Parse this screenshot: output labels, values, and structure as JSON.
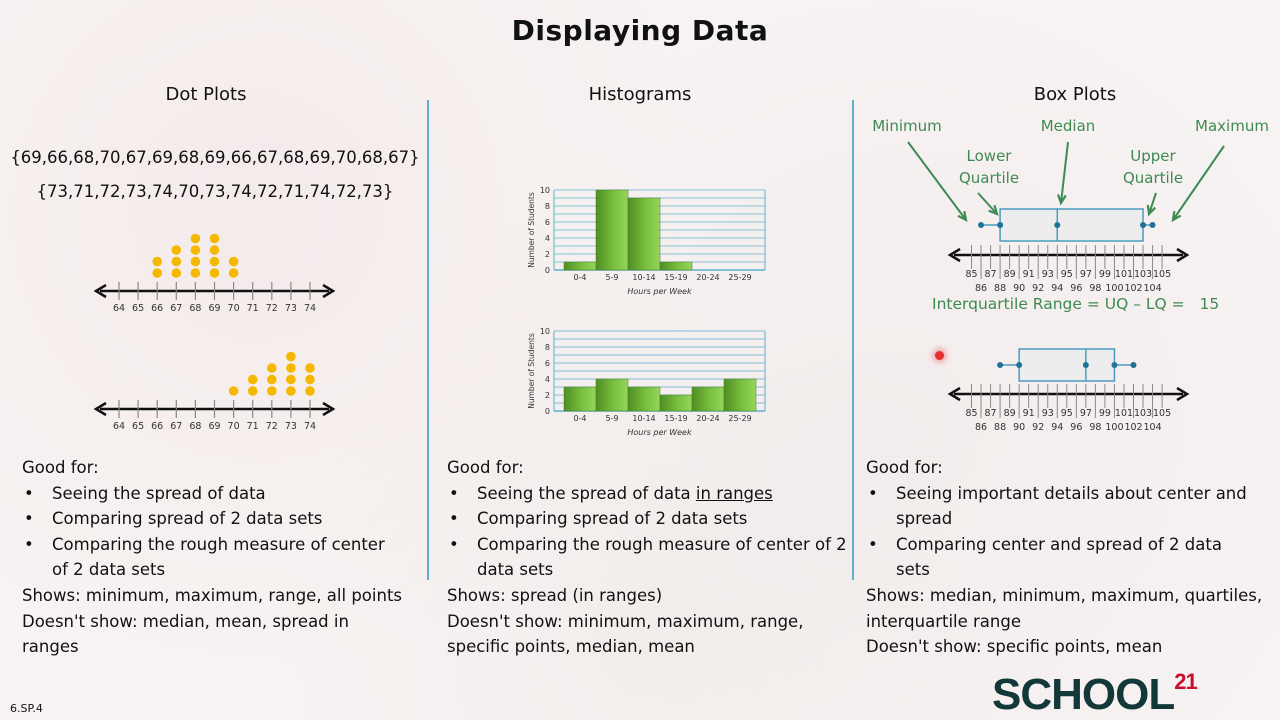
{
  "title": "Displaying Data",
  "columns": {
    "dot_plots": {
      "heading": "Dot Plots",
      "dataset1": "{69,66,68,70,67,69,68,69,66,67,68,69,70,68,67}",
      "dataset2": "{73,71,72,73,74,70,73,74,72,71,74,72,73}",
      "good_for_label": "Good for:",
      "good_for": [
        "Seeing the spread of data",
        "Comparing spread of 2 data sets",
        "Comparing the rough measure of center of 2 data sets"
      ],
      "shows": "Shows:  minimum, maximum, range, all points",
      "doesnt_show": "Doesn't show:  median, mean, spread in ranges"
    },
    "histograms": {
      "heading": "Histograms",
      "good_for_label": "Good for:",
      "good_for_1_prefix": "Seeing the spread of data ",
      "good_for_1_underlined": "in ranges",
      "good_for": [
        "Comparing spread of 2 data sets",
        "Comparing the rough measure of center of 2 data sets"
      ],
      "shows": "Shows:  spread (in ranges)",
      "doesnt_show": "Doesn't show:  minimum, maximum, range, specific points, median, mean"
    },
    "box_plots": {
      "heading": "Box Plots",
      "labels": {
        "minimum": "Minimum",
        "median": "Median",
        "maximum": "Maximum",
        "lower_quartile": "Lower\nQuartile",
        "upper_quartile": "Upper\nQuartile"
      },
      "iqr_text": "Interquartile Range = UQ – LQ =",
      "iqr_value": "15",
      "good_for_label": "Good for:",
      "good_for": [
        "Seeing important details about center and spread",
        "Comparing center and spread of 2 data sets"
      ],
      "shows": "Shows:  median, minimum, maximum, quartiles, interquartile range",
      "doesnt_show": "Doesn't show:  specific points, mean"
    }
  },
  "footer": {
    "standard": "6.SP.4",
    "logo_text": "SCHOOL",
    "logo_sup": "21"
  },
  "colors": {
    "dot": "#f5b800",
    "bar": "#7cc242",
    "grid": "#5fb0cc",
    "box_line": "#4a9cc0",
    "box_dot": "#1e7396",
    "callout": "#3f8a52",
    "logo": "#13383a",
    "logo_accent": "#c8102e"
  },
  "chart_data": [
    {
      "type": "scatter",
      "title": "Dot Plot 1",
      "subtype": "dot_plot",
      "x_ticks": [
        64,
        65,
        66,
        67,
        68,
        69,
        70,
        71,
        72,
        73,
        74
      ],
      "counts": {
        "66": 2,
        "67": 3,
        "68": 4,
        "69": 4,
        "70": 2
      }
    },
    {
      "type": "scatter",
      "title": "Dot Plot 2",
      "subtype": "dot_plot",
      "x_ticks": [
        64,
        65,
        66,
        67,
        68,
        69,
        70,
        71,
        72,
        73,
        74
      ],
      "counts": {
        "70": 1,
        "71": 2,
        "72": 3,
        "73": 4,
        "74": 3
      }
    },
    {
      "type": "bar",
      "title": "Histogram 1",
      "categories": [
        "0-4",
        "5-9",
        "10-14",
        "15-19",
        "20-24",
        "25-29"
      ],
      "values": [
        1,
        10,
        9,
        1,
        0,
        0
      ],
      "xlabel": "Hours per Week",
      "ylabel": "Number of Students",
      "ylim": [
        0,
        10
      ],
      "y_ticks": [
        0,
        2,
        4,
        6,
        8,
        10
      ],
      "grid": true
    },
    {
      "type": "bar",
      "title": "Histogram 2",
      "categories": [
        "0-4",
        "5-9",
        "10-14",
        "15-19",
        "20-24",
        "25-29"
      ],
      "values": [
        3,
        4,
        3,
        2,
        3,
        4
      ],
      "xlabel": "Hours per Week",
      "ylabel": "Number of Students",
      "ylim": [
        0,
        10
      ],
      "y_ticks": [
        0,
        2,
        4,
        6,
        8,
        10
      ],
      "grid": true
    },
    {
      "type": "box",
      "title": "Box Plot 1",
      "min": 86,
      "q1": 88,
      "median": 94,
      "q3": 103,
      "max": 104,
      "x_ticks_top": [
        85,
        87,
        89,
        91,
        93,
        95,
        97,
        99,
        101,
        103,
        105
      ],
      "x_ticks_bottom": [
        86,
        88,
        90,
        92,
        94,
        96,
        98,
        100,
        102,
        104
      ],
      "annotations": [
        "Minimum",
        "Lower Quartile",
        "Median",
        "Upper Quartile",
        "Maximum"
      ],
      "iqr": 15
    },
    {
      "type": "box",
      "title": "Box Plot 2",
      "min": 88,
      "q1": 90,
      "median": 97,
      "q3": 100,
      "max": 102,
      "x_ticks_top": [
        85,
        87,
        89,
        91,
        93,
        95,
        97,
        99,
        101,
        103,
        105
      ],
      "x_ticks_bottom": [
        86,
        88,
        90,
        92,
        94,
        96,
        98,
        100,
        102,
        104
      ]
    }
  ]
}
